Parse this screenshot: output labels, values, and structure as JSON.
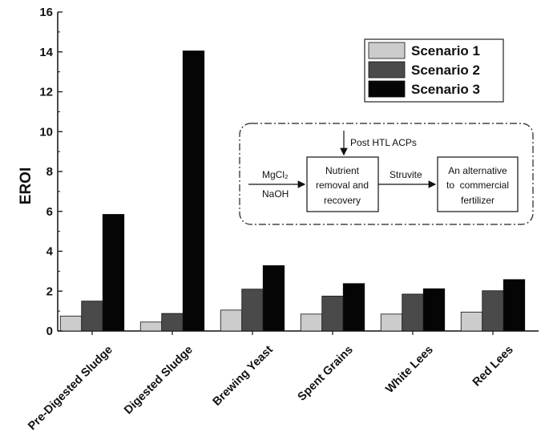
{
  "chart_data": {
    "type": "bar",
    "ylabel": "EROI",
    "xlabel": "",
    "ylim": [
      0,
      16
    ],
    "yticks": [
      0,
      2,
      4,
      6,
      8,
      10,
      12,
      14,
      16
    ],
    "categories": [
      "Pre-Digested Sludge",
      "Digested Sludge",
      "Brewing Yeast",
      "Spent Grains",
      "White Lees",
      "Red Lees"
    ],
    "series": [
      {
        "name": "Scenario 1",
        "color": "#cccccc",
        "values": [
          0.75,
          0.45,
          1.05,
          0.85,
          0.85,
          0.95
        ]
      },
      {
        "name": "Scenario 2",
        "color": "#4a4a4a",
        "values": [
          1.5,
          0.88,
          2.1,
          1.75,
          1.85,
          2.02
        ]
      },
      {
        "name": "Scenario 3",
        "color": "#050505",
        "values": [
          5.85,
          14.05,
          3.28,
          2.38,
          2.12,
          2.58
        ]
      }
    ],
    "legend_position": "top-right",
    "grid": false
  },
  "inset": {
    "top_input": "Post HTL ACPs",
    "left_input_1": "MgCl₂",
    "left_input_2": "NaOH",
    "box1_lines": [
      "Nutrient",
      "removal and",
      "recovery"
    ],
    "arrow_label": "Struvite",
    "box2_lines": [
      "An alternative",
      "to  commercial",
      "fertilizer"
    ]
  }
}
